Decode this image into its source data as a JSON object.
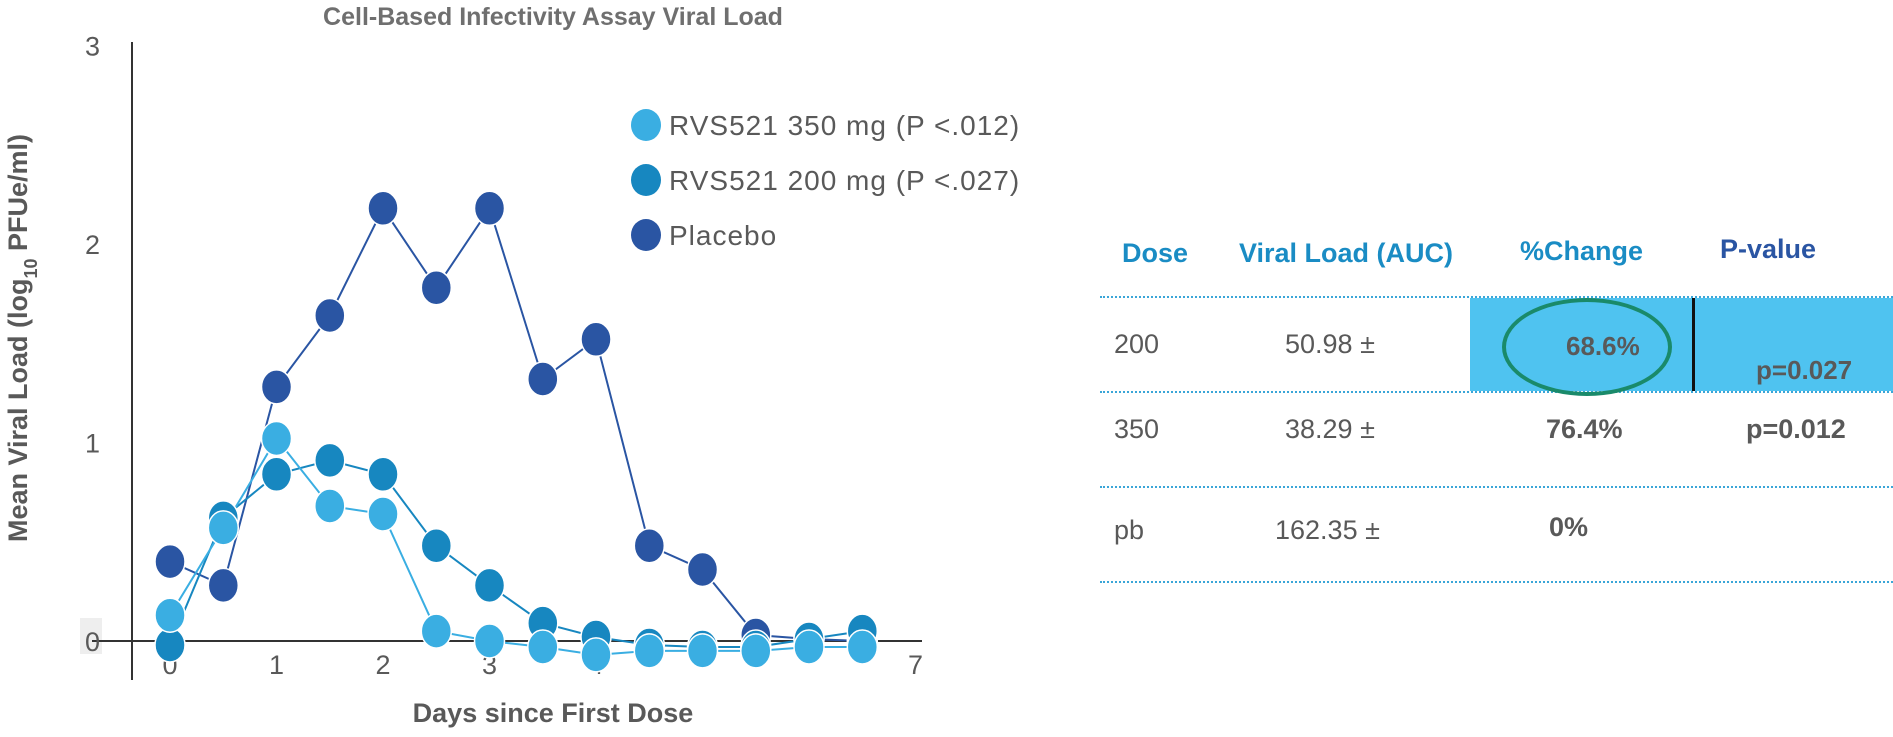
{
  "chart_data": {
    "type": "line",
    "title": "Cell-Based Infectivity Assay Viral Load",
    "xlabel": "Days since First Dose",
    "ylabel": "Mean Viral Load (log10 PFUe/ml)",
    "xlim": [
      -0.3,
      7.2
    ],
    "ylim": [
      0,
      3
    ],
    "x_ticks": [
      "0",
      "1",
      "2",
      "3",
      "4",
      "",
      "",
      "7"
    ],
    "y_ticks": [
      "0",
      "1",
      "2",
      "3"
    ],
    "legend_position": "top-right",
    "series": [
      {
        "name": "RVS521 350 mg (P <.012)",
        "color": "#3aaee2",
        "x": [
          0,
          0.5,
          1,
          1.5,
          2,
          2.5,
          3,
          3.5,
          4,
          4.5,
          5,
          5.5,
          6,
          6.5
        ],
        "y": [
          0.13,
          0.57,
          1.02,
          0.68,
          0.64,
          0.05,
          0.0,
          -0.03,
          -0.07,
          -0.05,
          -0.05,
          -0.05,
          -0.03,
          -0.03
        ]
      },
      {
        "name": "RVS521 200 mg (P <.027)",
        "color": "#1787c0",
        "x": [
          0,
          0.5,
          1,
          1.5,
          2,
          2.5,
          3,
          3.5,
          4,
          4.5,
          5,
          5.5,
          6,
          6.5
        ],
        "y": [
          -0.02,
          0.62,
          0.84,
          0.91,
          0.84,
          0.48,
          0.28,
          0.09,
          0.02,
          -0.02,
          -0.03,
          -0.03,
          0.01,
          0.05
        ]
      },
      {
        "name": "Placebo",
        "color": "#2a55a3",
        "x": [
          0,
          0.5,
          1,
          1.5,
          2,
          2.5,
          3,
          3.5,
          4,
          4.5,
          5,
          5.5,
          6,
          6.5
        ],
        "y": [
          0.4,
          0.28,
          1.28,
          1.64,
          2.18,
          1.78,
          2.18,
          1.32,
          1.52,
          0.48,
          0.36,
          0.03,
          0.01,
          0.0
        ]
      }
    ]
  },
  "table": {
    "headers": [
      "Dose",
      "Viral Load (AUC)",
      "%Change",
      "P-value"
    ],
    "header_colors": [
      "#1a8cc4",
      "#1a8cc4",
      "#1a8cc4",
      "#2a55a3"
    ],
    "rows": [
      {
        "dose": "200",
        "auc": "50.98 ±",
        "change": "68.6%",
        "pvalue": "p=0.027",
        "highlight": true
      },
      {
        "dose": "350",
        "auc": "38.29 ±",
        "change": "76.4%",
        "pvalue": "p=0.012",
        "highlight": false
      },
      {
        "dose": "pb",
        "auc": "162.35 ±",
        "change": "0%",
        "pvalue": "",
        "highlight": false
      }
    ]
  }
}
